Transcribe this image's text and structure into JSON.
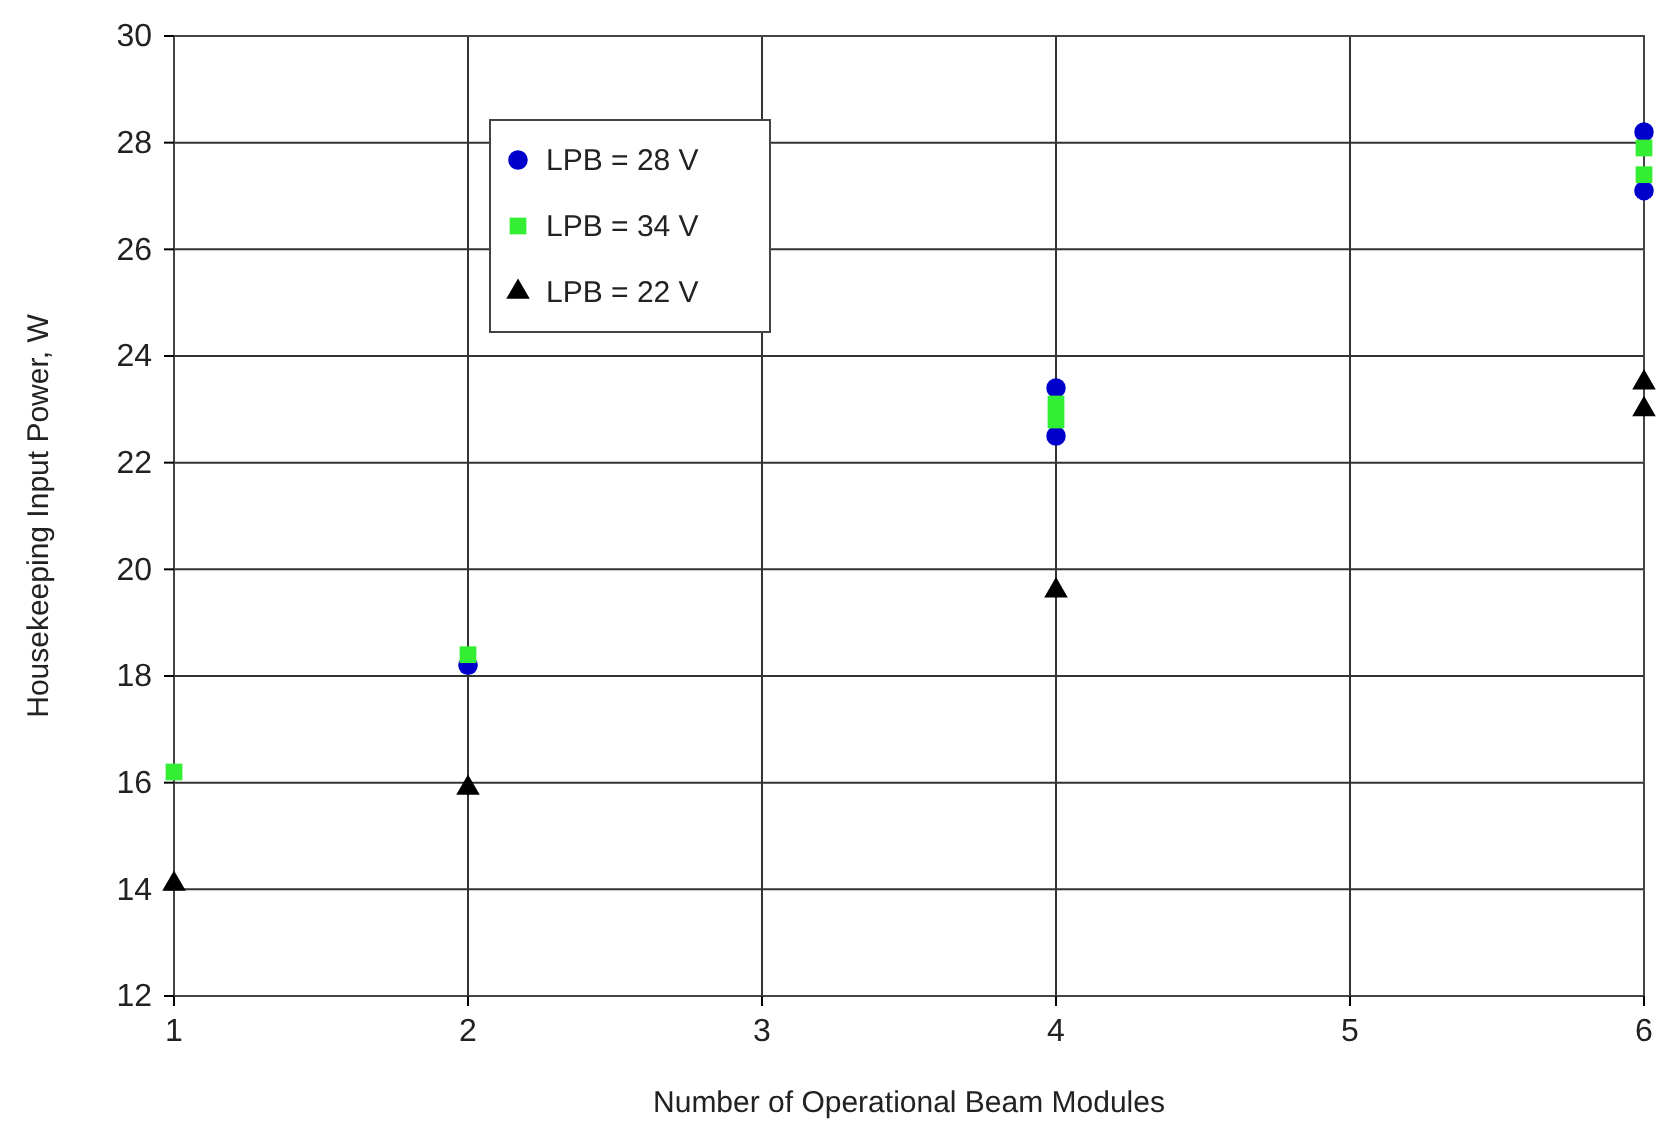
{
  "chart_data": {
    "type": "scatter",
    "xlabel": "Number of Operational Beam Modules",
    "ylabel": "Housekeeping Input Power, W",
    "xlim": [
      1,
      6
    ],
    "ylim": [
      12,
      30
    ],
    "xticks": [
      1,
      2,
      3,
      4,
      5,
      6
    ],
    "yticks": [
      12,
      14,
      16,
      18,
      20,
      22,
      24,
      26,
      28,
      30
    ],
    "grid": true,
    "legend": "top left",
    "series": [
      {
        "name": "LPB = 28 V",
        "color": "#0000cc",
        "marker": "circle",
        "x": [
          2,
          4,
          4,
          6,
          6
        ],
        "values": [
          18.2,
          22.5,
          23.4,
          27.1,
          28.2
        ]
      },
      {
        "name": "LPB = 34 V",
        "color": "#33ee33",
        "marker": "square",
        "x": [
          1,
          2,
          4,
          4,
          6,
          6
        ],
        "values": [
          16.2,
          18.4,
          22.8,
          23.1,
          27.4,
          27.9
        ]
      },
      {
        "name": "LPB = 22 V",
        "color": "#000000",
        "marker": "triangle",
        "x": [
          1,
          2,
          4,
          6,
          6
        ],
        "values": [
          14.1,
          15.9,
          19.6,
          23.0,
          23.5
        ]
      }
    ]
  }
}
